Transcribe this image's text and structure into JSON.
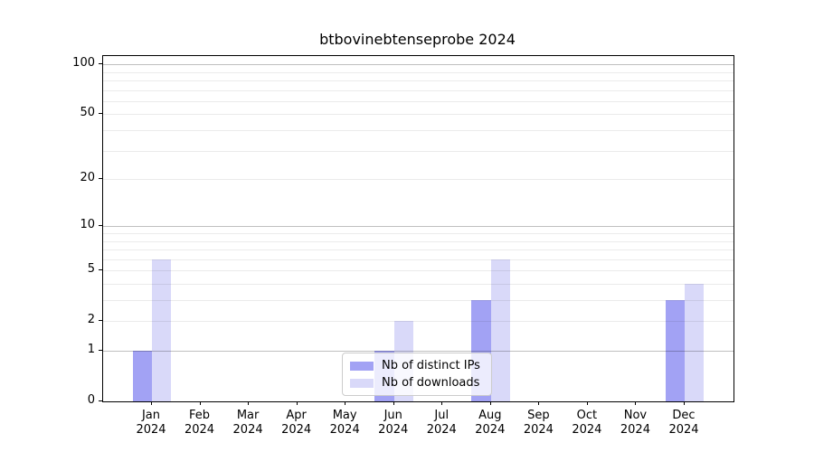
{
  "chart_data": {
    "type": "bar",
    "title": "btbovinebtenseprobe 2024",
    "categories": [
      "Jan 2024",
      "Feb 2024",
      "Mar 2024",
      "Apr 2024",
      "May 2024",
      "Jun 2024",
      "Jul 2024",
      "Aug 2024",
      "Sep 2024",
      "Oct 2024",
      "Nov 2024",
      "Dec 2024"
    ],
    "series": [
      {
        "name": "Nb of distinct IPs",
        "color": "#a2a2f4",
        "values": [
          1,
          0,
          0,
          0,
          0,
          1,
          0,
          3,
          0,
          0,
          0,
          3
        ]
      },
      {
        "name": "Nb of downloads",
        "color": "#d9d9f9",
        "values": [
          6,
          0,
          0,
          0,
          0,
          2,
          0,
          6,
          0,
          0,
          0,
          4
        ]
      }
    ],
    "yscale": "log10(v+1)",
    "yticks": [
      0,
      1,
      2,
      5,
      10,
      20,
      50,
      100
    ],
    "minor_grid_values": [
      3,
      4,
      6,
      7,
      8,
      9,
      30,
      40,
      60,
      70,
      80,
      90
    ],
    "major_grid_values": [
      1,
      10,
      100
    ],
    "ylim": [
      0,
      115
    ],
    "xlabel": "",
    "ylabel": "",
    "grid": "horizontal",
    "legend_position": "lower-center"
  },
  "colors": {
    "background": "#ffffff",
    "axis": "#000000",
    "bar_distinct_ips": "#a2a2f4",
    "bar_downloads": "#d9d9f9",
    "legend_border": "#cccccc"
  }
}
